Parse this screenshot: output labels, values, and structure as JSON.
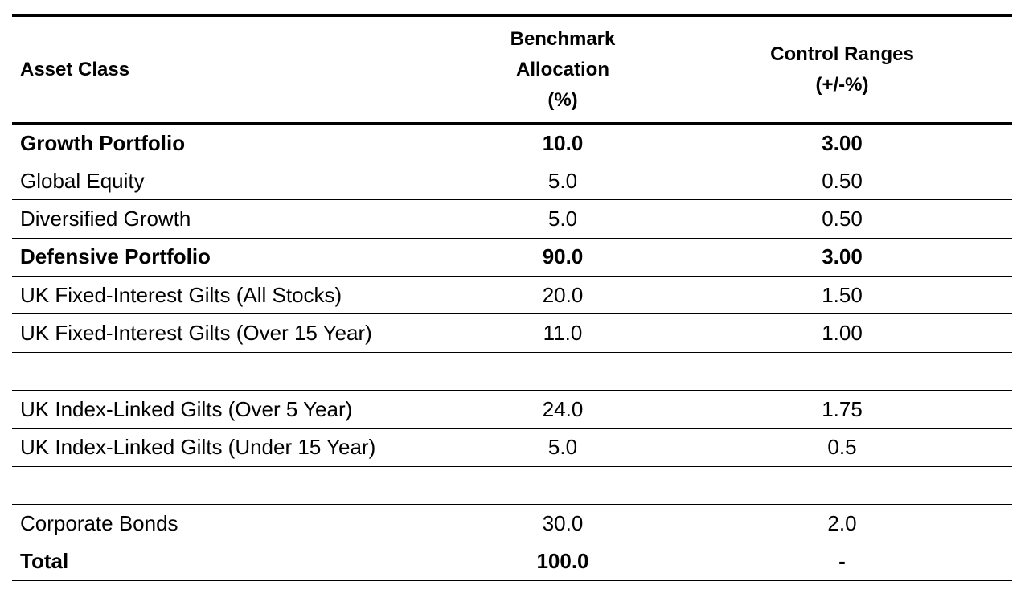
{
  "header": {
    "asset_class": "Asset Class",
    "benchmark": [
      "Benchmark",
      "Allocation",
      "(%)"
    ],
    "control": [
      "Control Ranges",
      "(+/-%)"
    ]
  },
  "rows": [
    {
      "label": "Growth Portfolio",
      "benchmark": "10.0",
      "control": "3.00",
      "bold": true
    },
    {
      "label": "Global Equity",
      "benchmark": "5.0",
      "control": "0.50",
      "bold": false
    },
    {
      "label": "Diversified Growth",
      "benchmark": "5.0",
      "control": "0.50",
      "bold": false
    },
    {
      "label": "Defensive Portfolio",
      "benchmark": "90.0",
      "control": "3.00",
      "bold": true
    },
    {
      "label": "UK Fixed-Interest Gilts (All Stocks)",
      "benchmark": "20.0",
      "control": "1.50",
      "bold": false
    },
    {
      "label": "UK Fixed-Interest Gilts (Over 15 Year)",
      "benchmark": "11.0",
      "control": "1.00",
      "bold": false
    },
    {
      "label": "",
      "benchmark": "",
      "control": "",
      "bold": false
    },
    {
      "label": "UK Index-Linked Gilts  (Over 5 Year)",
      "benchmark": "24.0",
      "control": "1.75",
      "bold": false
    },
    {
      "label": "UK Index-Linked Gilts (Under 15 Year)",
      "benchmark": "5.0",
      "control": "0.5",
      "bold": false
    },
    {
      "label": "",
      "benchmark": "",
      "control": "",
      "bold": false
    },
    {
      "label": "Corporate Bonds",
      "benchmark": "30.0",
      "control": "2.0",
      "bold": false
    },
    {
      "label": "Total",
      "benchmark": "100.0",
      "control": "-",
      "bold": true
    }
  ]
}
